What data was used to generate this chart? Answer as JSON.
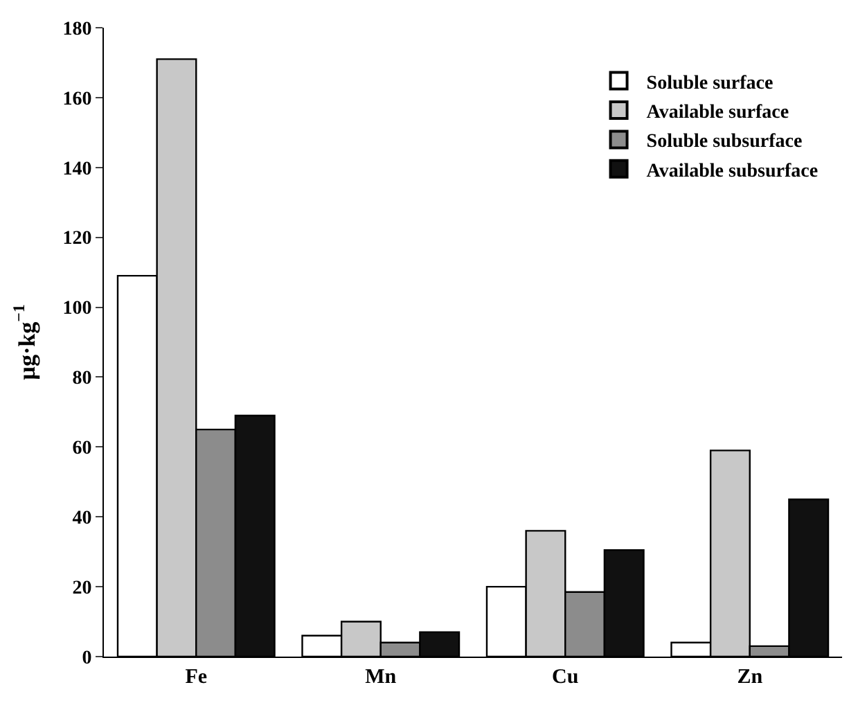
{
  "chart_data": {
    "type": "bar",
    "ylabel": "µg·kg$^{−1}$",
    "categories": [
      "Fe",
      "Mn",
      "Cu",
      "Zn"
    ],
    "series": [
      {
        "name": "Soluble surface",
        "color": "#ffffff",
        "values": [
          109,
          6,
          20,
          4
        ]
      },
      {
        "name": "Available surface",
        "color": "#c8c8c8",
        "values": [
          171,
          10,
          36,
          59
        ]
      },
      {
        "name": "Soluble subsurface",
        "color": "#8c8c8c",
        "values": [
          65,
          4,
          18.5,
          3
        ]
      },
      {
        "name": "Available subsurface",
        "color": "#111111",
        "values": [
          69,
          7,
          30.5,
          45
        ]
      }
    ],
    "ylim": [
      0,
      180
    ],
    "yticks": [
      0,
      20,
      40,
      60,
      80,
      100,
      120,
      140,
      160,
      180
    ],
    "legend": "top right"
  }
}
